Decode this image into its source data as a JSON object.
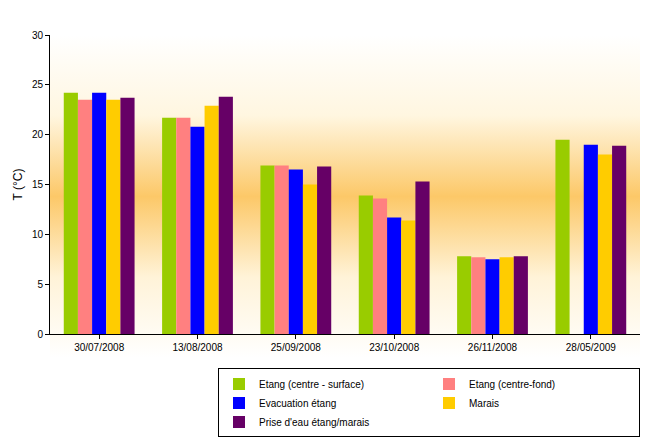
{
  "chart_data": {
    "type": "bar",
    "y_label": "T (°C)",
    "categories": [
      "30/07/2008",
      "13/08/2008",
      "25/09/2008",
      "23/10/2008",
      "26/11/2008",
      "28/05/2009"
    ],
    "series": [
      {
        "name": "Etang (centre - surface)",
        "color": "#99CC00",
        "values": [
          24.2,
          21.7,
          16.9,
          13.9,
          7.8,
          19.5
        ]
      },
      {
        "name": "Etang (centre-fond)",
        "color": "#FF8080",
        "values": [
          23.5,
          21.7,
          16.9,
          13.6,
          7.7,
          null
        ]
      },
      {
        "name": "Evacuation étang",
        "color": "#0000FF",
        "values": [
          24.2,
          20.8,
          16.5,
          11.7,
          7.5,
          19.0
        ]
      },
      {
        "name": "Marais",
        "color": "#FFCC00",
        "values": [
          23.5,
          22.9,
          15.0,
          11.4,
          7.7,
          18.0
        ]
      },
      {
        "name": "Prise d'eau étang/marais",
        "color": "#660066",
        "values": [
          23.7,
          23.8,
          16.8,
          15.3,
          7.8,
          18.9
        ]
      }
    ],
    "ylim": [
      0,
      30
    ],
    "yticks": [
      0,
      5,
      10,
      15,
      20,
      25,
      30
    ],
    "grid": false,
    "legend": "bottom right"
  }
}
